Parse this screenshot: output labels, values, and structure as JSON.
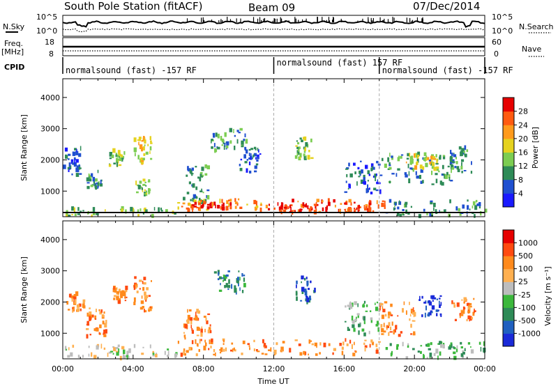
{
  "header": {
    "station": "South Pole Station (fitACF)",
    "beam": "Beam 09",
    "date": "07/Dec/2014"
  },
  "top_panels": {
    "nsky_label": "N.Sky",
    "nsearch_label": "N.Search",
    "freq_label": "Freq.",
    "freq_unit": "[MHz]",
    "nave_label": "Nave",
    "cpid_label": "CPID",
    "noise_ticks_left": [
      "10^5",
      "10^0"
    ],
    "noise_ticks_right": [
      "10^5",
      "10^0"
    ],
    "freq_ticks": [
      "18",
      "8"
    ],
    "nave_ticks": [
      "60",
      "0"
    ],
    "cpid_segments": [
      {
        "start_h": 0,
        "end_h": 12,
        "label": "normalsound (fast) -157 RF"
      },
      {
        "start_h": 12,
        "end_h": 18,
        "label": "normalsound (fast) 157 RF"
      },
      {
        "start_h": 18,
        "end_h": 24,
        "label": "normalsound (fast) -157 RF"
      }
    ]
  },
  "chart_data": [
    {
      "type": "heatmap",
      "name": "power",
      "ylabel": "Slant Range [km]",
      "ylim": [
        180,
        4600
      ],
      "yticks": [
        1000,
        2000,
        3000,
        4000
      ],
      "xlim": [
        0,
        24
      ],
      "colorbar_label": "Power [dB]",
      "colorbar_ticks": [
        "4",
        "8",
        "12",
        "16",
        "20",
        "24",
        "28"
      ],
      "colorbar_colors": [
        "#1a1aff",
        "#2050d0",
        "#2e8b57",
        "#7ccd52",
        "#e5d21f",
        "#ff9a1c",
        "#ff5a10",
        "#e60000"
      ],
      "regions": [
        {
          "t0": 0.0,
          "t1": 1.0,
          "r0": 1500,
          "r1": 2400,
          "level": 1
        },
        {
          "t0": 1.3,
          "t1": 2.2,
          "r0": 1100,
          "r1": 1700,
          "level": 2
        },
        {
          "t0": 2.6,
          "t1": 3.5,
          "r0": 1800,
          "r1": 2300,
          "level": 3
        },
        {
          "t0": 4.0,
          "t1": 5.0,
          "r0": 1800,
          "r1": 2800,
          "level": 4
        },
        {
          "t0": 4.1,
          "t1": 4.9,
          "r0": 900,
          "r1": 1400,
          "level": 3
        },
        {
          "t0": 6.8,
          "t1": 8.2,
          "r0": 600,
          "r1": 1800,
          "level": 2
        },
        {
          "t0": 8.4,
          "t1": 10.4,
          "r0": 2300,
          "r1": 3000,
          "level": 2
        },
        {
          "t0": 10.0,
          "t1": 11.2,
          "r0": 1600,
          "r1": 2400,
          "level": 1
        },
        {
          "t0": 13.2,
          "t1": 14.2,
          "r0": 2000,
          "r1": 2700,
          "level": 3
        },
        {
          "t0": 16.0,
          "t1": 18.0,
          "r0": 900,
          "r1": 2000,
          "level": 1
        },
        {
          "t0": 18.0,
          "t1": 22.2,
          "r0": 1200,
          "r1": 2200,
          "level": 2
        },
        {
          "t0": 19.5,
          "t1": 21.3,
          "r0": 1700,
          "r1": 2200,
          "level": 4
        },
        {
          "t0": 22.0,
          "t1": 23.3,
          "r0": 1600,
          "r1": 2400,
          "level": 2
        },
        {
          "t0": 6.5,
          "t1": 11.5,
          "r0": 380,
          "r1": 750,
          "level": 5
        },
        {
          "t0": 11.5,
          "t1": 18.3,
          "r0": 300,
          "r1": 700,
          "level": 6
        },
        {
          "t0": 7.2,
          "t1": 9.5,
          "r0": 430,
          "r1": 620,
          "level": 7
        },
        {
          "t0": 12.2,
          "t1": 14.5,
          "r0": 320,
          "r1": 600,
          "level": 7
        },
        {
          "t0": 16.0,
          "t1": 17.5,
          "r0": 350,
          "r1": 550,
          "level": 6
        },
        {
          "t0": 0.0,
          "t1": 6.5,
          "r0": 200,
          "r1": 450,
          "level": 3
        },
        {
          "t0": 18.3,
          "t1": 24.0,
          "r0": 200,
          "r1": 700,
          "level": 2
        }
      ]
    },
    {
      "type": "heatmap",
      "name": "velocity",
      "ylabel": "Slant Range [km]",
      "ylim": [
        180,
        4600
      ],
      "yticks": [
        1000,
        2000,
        3000,
        4000
      ],
      "xlim": [
        0,
        24
      ],
      "colorbar_label": "Velocity [m s⁻¹]",
      "colorbar_ticks": [
        "1000",
        "500",
        "100",
        "25",
        "-25",
        "-100",
        "-500",
        "-1000"
      ],
      "colorbar_colors": [
        "#1a2ad8",
        "#2060c0",
        "#2e8b57",
        "#3cb83c",
        "#bdbdbd",
        "#ffb050",
        "#ff8a1c",
        "#ff4a10",
        "#e60000"
      ],
      "regions": [
        {
          "t0": 0.2,
          "t1": 1.2,
          "r0": 1700,
          "r1": 2300,
          "level": 6
        },
        {
          "t0": 1.3,
          "t1": 2.6,
          "r0": 900,
          "r1": 1800,
          "level": 6
        },
        {
          "t0": 2.8,
          "t1": 3.6,
          "r0": 2000,
          "r1": 2500,
          "level": 6
        },
        {
          "t0": 4.0,
          "t1": 5.0,
          "r0": 1700,
          "r1": 2800,
          "level": 6
        },
        {
          "t0": 6.8,
          "t1": 8.4,
          "r0": 700,
          "r1": 1800,
          "level": 6
        },
        {
          "t0": 8.6,
          "t1": 10.3,
          "r0": 2300,
          "r1": 3000,
          "level": 2
        },
        {
          "t0": 13.2,
          "t1": 14.3,
          "r0": 2000,
          "r1": 2800,
          "level": 1
        },
        {
          "t0": 16.0,
          "t1": 18.0,
          "r0": 900,
          "r1": 2000,
          "level": 3
        },
        {
          "t0": 18.0,
          "t1": 20.0,
          "r0": 900,
          "r1": 2000,
          "level": 6
        },
        {
          "t0": 20.2,
          "t1": 21.5,
          "r0": 1500,
          "r1": 2200,
          "level": 0
        },
        {
          "t0": 22.0,
          "t1": 23.4,
          "r0": 1400,
          "r1": 2200,
          "level": 6
        },
        {
          "t0": 6.5,
          "t1": 18.3,
          "r0": 300,
          "r1": 800,
          "level": 6
        },
        {
          "t0": 0.0,
          "t1": 6.5,
          "r0": 200,
          "r1": 600,
          "level": 4
        },
        {
          "t0": 18.3,
          "t1": 24.0,
          "r0": 200,
          "r1": 700,
          "level": 3
        }
      ]
    }
  ],
  "x_axis": {
    "label": "Time UT",
    "ticks": [
      "00:00",
      "04:00",
      "08:00",
      "12:00",
      "16:00",
      "20:00",
      "00:00"
    ]
  }
}
